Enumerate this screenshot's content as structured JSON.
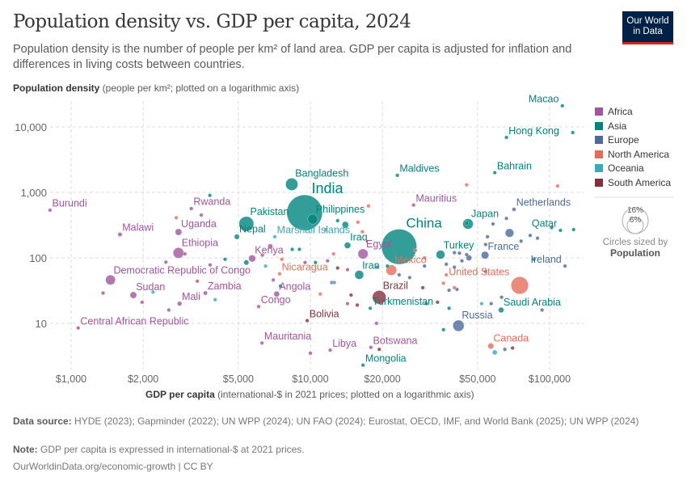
{
  "header": {
    "title": "Population density vs. GDP per capita, 2024",
    "subtitle": "Population density is the number of people per km² of land area. GDP per capita is adjusted for inflation and differences in living costs between countries.",
    "logo": "Our World in Data"
  },
  "footer": {
    "source_label": "Data source:",
    "source": "HYDE (2023); Gapminder (2022); UN WPP (2024); UN FAO (2024); Eurostat, OECD, IMF, and World Bank (2025); UN WPP (2024)",
    "note_label": "Note:",
    "note": "GDP per capita is expressed in international-$ at 2021 prices.",
    "credit": "OurWorldinData.org/economic-growth | CC BY"
  },
  "size_legend": {
    "big": "16%",
    "small": "6%",
    "caption": "Circles sized by",
    "variable": "Population"
  },
  "chart_data": {
    "type": "scatter",
    "title": "Population density vs. GDP per capita, 2024",
    "ylabel_bold": "Population density",
    "ylabel_rest": " (people per km²; plotted on a logarithmic axis)",
    "xlabel_bold": "GDP per capita",
    "xlabel_rest": " (international-$ in 2021 prices; plotted on a logarithmic axis)",
    "xscale": "log",
    "yscale": "log",
    "xlim": [
      720,
      130000
    ],
    "ylim": [
      2,
      26000
    ],
    "grid": true,
    "legend_placement": "right",
    "xticks": [
      {
        "v": 1000,
        "t": "$1,000"
      },
      {
        "v": 2000,
        "t": "$2,000"
      },
      {
        "v": 5000,
        "t": "$5,000"
      },
      {
        "v": 10000,
        "t": "$10,000"
      },
      {
        "v": 20000,
        "t": "$20,000"
      },
      {
        "v": 50000,
        "t": "$50,000"
      },
      {
        "v": 100000,
        "t": "$100,000"
      }
    ],
    "yticks": [
      {
        "v": 10,
        "t": "10"
      },
      {
        "v": 100,
        "t": "100"
      },
      {
        "v": 1000,
        "t": "1,000"
      },
      {
        "v": 10000,
        "t": "10,000"
      }
    ],
    "regions": [
      {
        "name": "Africa",
        "color": "#a2559c"
      },
      {
        "name": "Asia",
        "color": "#00847e"
      },
      {
        "name": "Europe",
        "color": "#4c6a9c"
      },
      {
        "name": "North America",
        "color": "#e56e5a"
      },
      {
        "name": "Oceania",
        "color": "#38aaba"
      },
      {
        "name": "South America",
        "color": "#883039"
      }
    ],
    "points": [
      {
        "label": "Burundi",
        "r": "Africa",
        "x": 816,
        "y": 535,
        "pop": 14
      },
      {
        "label": "Malawi",
        "r": "Africa",
        "x": 1600,
        "y": 228,
        "pop": 21
      },
      {
        "label": "Rwanda",
        "r": "Africa",
        "x": 3180,
        "y": 566,
        "pop": 14
      },
      {
        "label": "Uganda",
        "r": "Africa",
        "x": 2810,
        "y": 248,
        "pop": 50
      },
      {
        "label": "Ethiopia",
        "r": "Africa",
        "x": 2810,
        "y": 119,
        "pop": 130
      },
      {
        "label": "Democratic Republic of Congo",
        "r": "Africa",
        "x": 1460,
        "y": 46,
        "pop": 110
      },
      {
        "label": "Sudan",
        "r": "Africa",
        "x": 1820,
        "y": 27,
        "pop": 50
      },
      {
        "label": "Mali",
        "r": "Africa",
        "x": 2840,
        "y": 20,
        "pop": 24
      },
      {
        "label": "Zambia",
        "r": "Africa",
        "x": 3640,
        "y": 29,
        "pop": 21
      },
      {
        "label": "Central African Republic",
        "r": "Africa",
        "x": 1070,
        "y": 8.5,
        "pop": 5
      },
      {
        "label": "Kenya",
        "r": "Africa",
        "x": 5710,
        "y": 98,
        "pop": 56
      },
      {
        "label": "Nepal",
        "r": "Asia",
        "x": 4930,
        "y": 210,
        "pop": 30
      },
      {
        "label": "Pakistan",
        "r": "Asia",
        "x": 5400,
        "y": 330,
        "pop": 250
      },
      {
        "label": "Bangladesh",
        "r": "Asia",
        "x": 8360,
        "y": 1330,
        "pop": 173
      },
      {
        "label": "India",
        "r": "Asia",
        "x": 9460,
        "y": 490,
        "pop": 1450
      },
      {
        "label": "Philippines",
        "r": "Asia",
        "x": 10230,
        "y": 390,
        "pop": 115
      },
      {
        "label": "Marshall Islands",
        "r": "Oceania",
        "x": 7100,
        "y": 210,
        "pop": 0.04
      },
      {
        "label": "Iraq",
        "r": "Asia",
        "x": 14300,
        "y": 155,
        "pop": 46
      },
      {
        "label": "Egypt",
        "r": "Africa",
        "x": 16600,
        "y": 115,
        "pop": 116
      },
      {
        "label": "Iran",
        "r": "Asia",
        "x": 16000,
        "y": 55,
        "pop": 91
      },
      {
        "label": "China",
        "r": "Asia",
        "x": 23500,
        "y": 148,
        "pop": 1420
      },
      {
        "label": "Mexico",
        "r": "North America",
        "x": 21800,
        "y": 65,
        "pop": 130
      },
      {
        "label": "Brazil",
        "r": "South America",
        "x": 19400,
        "y": 25,
        "pop": 212
      },
      {
        "label": "Turkmenistan",
        "r": "Asia",
        "x": 17800,
        "y": 17,
        "pop": 7
      },
      {
        "label": "Nicaragua",
        "r": "North America",
        "x": 7440,
        "y": 57,
        "pop": 7
      },
      {
        "label": "Angola",
        "r": "Africa",
        "x": 7230,
        "y": 28,
        "pop": 37
      },
      {
        "label": "Congo",
        "r": "Africa",
        "x": 6080,
        "y": 18,
        "pop": 6
      },
      {
        "label": "Bolivia",
        "r": "South America",
        "x": 9700,
        "y": 11,
        "pop": 12
      },
      {
        "label": "Mauritania",
        "r": "Africa",
        "x": 6280,
        "y": 5,
        "pop": 5
      },
      {
        "label": "Libya",
        "r": "Africa",
        "x": 12100,
        "y": 3.9,
        "pop": 7
      },
      {
        "label": "Botswana",
        "r": "Africa",
        "x": 17900,
        "y": 4.3,
        "pop": 2.5
      },
      {
        "label": "Mongolia",
        "r": "Asia",
        "x": 16600,
        "y": 2.3,
        "pop": 3.5
      },
      {
        "label": "Maldives",
        "r": "Asia",
        "x": 23100,
        "y": 1820,
        "pop": 0.5
      },
      {
        "label": "Mauritius",
        "r": "Africa",
        "x": 27000,
        "y": 640,
        "pop": 1.3
      },
      {
        "label": "Turkey",
        "r": "Asia",
        "x": 35000,
        "y": 112,
        "pop": 87
      },
      {
        "label": "Japan",
        "r": "Asia",
        "x": 45600,
        "y": 330,
        "pop": 124
      },
      {
        "label": "France",
        "r": "Europe",
        "x": 53700,
        "y": 110,
        "pop": 66
      },
      {
        "label": "United States",
        "r": "North America",
        "x": 75000,
        "y": 38,
        "pop": 345
      },
      {
        "label": "Russia",
        "r": "Europe",
        "x": 41600,
        "y": 9.2,
        "pop": 145
      },
      {
        "label": "Canada",
        "r": "North America",
        "x": 56800,
        "y": 4.5,
        "pop": 40
      },
      {
        "label": "Saudi Arabia",
        "r": "Asia",
        "x": 62700,
        "y": 16,
        "pop": 34
      },
      {
        "label": "Ireland",
        "r": "Europe",
        "x": 116000,
        "y": 75,
        "pop": 5
      },
      {
        "label": "Qatar",
        "r": "Asia",
        "x": 111000,
        "y": 263,
        "pop": 3
      },
      {
        "label": "Netherlands",
        "r": "Europe",
        "x": 71000,
        "y": 550,
        "pop": 18
      },
      {
        "label": "Bahrain",
        "r": "Asia",
        "x": 59000,
        "y": 2000,
        "pop": 1.6
      },
      {
        "label": "Hong Kong",
        "r": "Asia",
        "x": 66000,
        "y": 6900,
        "pop": 7.5
      },
      {
        "label": "Macao",
        "r": "Asia",
        "x": 113000,
        "y": 21000,
        "pop": 0.7
      },
      {
        "r": "Asia",
        "x": 125000,
        "y": 8200,
        "pop": 6
      },
      {
        "r": "Asia",
        "x": 3800,
        "y": 900,
        "pop": 1
      },
      {
        "r": "North America",
        "x": 2750,
        "y": 410,
        "pop": 11
      },
      {
        "r": "Africa",
        "x": 3500,
        "y": 450,
        "pop": 4
      },
      {
        "r": "Africa",
        "x": 1360,
        "y": 29,
        "pop": 5
      },
      {
        "r": "Africa",
        "x": 1980,
        "y": 21,
        "pop": 8
      },
      {
        "r": "Africa",
        "x": 2560,
        "y": 16,
        "pop": 10
      },
      {
        "r": "Africa",
        "x": 3370,
        "y": 44,
        "pop": 8
      },
      {
        "r": "Africa",
        "x": 2490,
        "y": 86,
        "pop": 6
      },
      {
        "r": "Africa",
        "x": 3810,
        "y": 78,
        "pop": 9
      },
      {
        "r": "Africa",
        "x": 2990,
        "y": 115,
        "pop": 6
      },
      {
        "r": "Oceania",
        "x": 2200,
        "y": 30,
        "pop": 2
      },
      {
        "r": "Oceania",
        "x": 4000,
        "y": 23,
        "pop": 2
      },
      {
        "r": "Asia",
        "x": 4400,
        "y": 95,
        "pop": 6
      },
      {
        "r": "Asia",
        "x": 5400,
        "y": 85,
        "pop": 30
      },
      {
        "r": "Africa",
        "x": 6300,
        "y": 110,
        "pop": 8
      },
      {
        "r": "Africa",
        "x": 6800,
        "y": 150,
        "pop": 28
      },
      {
        "r": "Oceania",
        "x": 6500,
        "y": 75,
        "pop": 1
      },
      {
        "r": "Asia",
        "x": 7500,
        "y": 37,
        "pop": 8
      },
      {
        "r": "Africa",
        "x": 7000,
        "y": 46,
        "pop": 4
      },
      {
        "r": "Africa",
        "x": 9500,
        "y": 85,
        "pop": 10
      },
      {
        "r": "Asia",
        "x": 10500,
        "y": 85,
        "pop": 12
      },
      {
        "r": "North America",
        "x": 7600,
        "y": 95,
        "pop": 2
      },
      {
        "r": "Asia",
        "x": 8400,
        "y": 135,
        "pop": 4
      },
      {
        "r": "Asia",
        "x": 9000,
        "y": 135,
        "pop": 8
      },
      {
        "r": "Asia",
        "x": 13000,
        "y": 370,
        "pop": 4
      },
      {
        "r": "Asia",
        "x": 14000,
        "y": 320,
        "pop": 50
      },
      {
        "r": "North America",
        "x": 11600,
        "y": 270,
        "pop": 1
      },
      {
        "r": "North America",
        "x": 15800,
        "y": 350,
        "pop": 3
      },
      {
        "r": "North America",
        "x": 17500,
        "y": 620,
        "pop": 0.3
      },
      {
        "r": "North America",
        "x": 16500,
        "y": 250,
        "pop": 0.4
      },
      {
        "r": "North America",
        "x": 12500,
        "y": 115,
        "pop": 1
      },
      {
        "r": "Africa",
        "x": 11800,
        "y": 90,
        "pop": 2
      },
      {
        "r": "Africa",
        "x": 12300,
        "y": 42,
        "pop": 9
      },
      {
        "r": "South America",
        "x": 13000,
        "y": 70,
        "pop": 3
      },
      {
        "r": "Africa",
        "x": 14300,
        "y": 66,
        "pop": 4
      },
      {
        "r": "Oceania",
        "x": 12600,
        "y": 42,
        "pop": 1
      },
      {
        "r": "South America",
        "x": 14800,
        "y": 27,
        "pop": 6
      },
      {
        "r": "Africa",
        "x": 14300,
        "y": 20,
        "pop": 10
      },
      {
        "r": "South America",
        "x": 15700,
        "y": 19,
        "pop": 3
      },
      {
        "r": "North America",
        "x": 11000,
        "y": 28,
        "pop": 1
      },
      {
        "r": "Africa",
        "x": 18900,
        "y": 10,
        "pop": 1
      },
      {
        "r": "Africa",
        "x": 10000,
        "y": 3.5,
        "pop": 1
      },
      {
        "r": "South America",
        "x": 19400,
        "y": 4,
        "pop": 1
      },
      {
        "r": "Europe",
        "x": 19000,
        "y": 72,
        "pop": 2
      },
      {
        "r": "Asia",
        "x": 21000,
        "y": 75,
        "pop": 3
      },
      {
        "r": "Europe",
        "x": 23500,
        "y": 55,
        "pop": 3
      },
      {
        "r": "Europe",
        "x": 26000,
        "y": 50,
        "pop": 2
      },
      {
        "r": "South America",
        "x": 29500,
        "y": 35,
        "pop": 3
      },
      {
        "r": "Asia",
        "x": 30500,
        "y": 20,
        "pop": 2
      },
      {
        "r": "North America",
        "x": 27500,
        "y": 130,
        "pop": 1
      },
      {
        "r": "North America",
        "x": 30000,
        "y": 100,
        "pop": 1
      },
      {
        "r": "North America",
        "x": 45000,
        "y": 1300,
        "pop": 0.3
      },
      {
        "r": "North America",
        "x": 108000,
        "y": 1250,
        "pop": 0.1
      },
      {
        "r": "Asia",
        "x": 45000,
        "y": 340,
        "pop": 2
      },
      {
        "r": "Europe",
        "x": 55000,
        "y": 210,
        "pop": 10
      },
      {
        "r": "Europe",
        "x": 54000,
        "y": 160,
        "pop": 10
      },
      {
        "r": "Europe",
        "x": 68000,
        "y": 240,
        "pop": 84
      },
      {
        "r": "Europe",
        "x": 58000,
        "y": 330,
        "pop": 6
      },
      {
        "r": "Europe",
        "x": 66000,
        "y": 400,
        "pop": 1
      },
      {
        "r": "Europe",
        "x": 76000,
        "y": 180,
        "pop": 1
      },
      {
        "r": "Europe",
        "x": 83000,
        "y": 220,
        "pop": 1
      },
      {
        "r": "Europe",
        "x": 89000,
        "y": 200,
        "pop": 1
      },
      {
        "r": "Asia",
        "x": 102000,
        "y": 290,
        "pop": 1
      },
      {
        "r": "Asia",
        "x": 126000,
        "y": 270,
        "pop": 1
      },
      {
        "r": "Asia",
        "x": 86000,
        "y": 95,
        "pop": 3
      },
      {
        "r": "Europe",
        "x": 40000,
        "y": 120,
        "pop": 4
      },
      {
        "r": "Europe",
        "x": 42000,
        "y": 118,
        "pop": 3
      },
      {
        "r": "Europe",
        "x": 45000,
        "y": 112,
        "pop": 2
      },
      {
        "r": "Europe",
        "x": 46000,
        "y": 100,
        "pop": 38
      },
      {
        "r": "Europe",
        "x": 37000,
        "y": 80,
        "pop": 3
      },
      {
        "r": "Europe",
        "x": 40000,
        "y": 72,
        "pop": 2
      },
      {
        "r": "Europe",
        "x": 43000,
        "y": 90,
        "pop": 2
      },
      {
        "r": "Europe",
        "x": 54000,
        "y": 62,
        "pop": 2
      },
      {
        "r": "Europe",
        "x": 38000,
        "y": 32,
        "pop": 3
      },
      {
        "r": "Europe",
        "x": 41000,
        "y": 33,
        "pop": 3
      },
      {
        "r": "Europe",
        "x": 30000,
        "y": 75,
        "pop": 4
      },
      {
        "r": "North America",
        "x": 37000,
        "y": 55,
        "pop": 1
      },
      {
        "r": "North America",
        "x": 36000,
        "y": 41,
        "pop": 1
      },
      {
        "r": "North America",
        "x": 40000,
        "y": 35,
        "pop": 1
      },
      {
        "r": "South America",
        "x": 34000,
        "y": 21,
        "pop": 3
      },
      {
        "r": "Asia",
        "x": 38000,
        "y": 17,
        "pop": 5
      },
      {
        "r": "Oceania",
        "x": 52000,
        "y": 20,
        "pop": 1
      },
      {
        "r": "Europe",
        "x": 57000,
        "y": 20,
        "pop": 2
      },
      {
        "r": "Europe",
        "x": 93000,
        "y": 16,
        "pop": 2
      },
      {
        "r": "Europe",
        "x": 63000,
        "y": 25,
        "pop": 5
      },
      {
        "r": "Asia",
        "x": 36000,
        "y": 8,
        "pop": 5
      },
      {
        "r": "Oceania",
        "x": 59000,
        "y": 3.6,
        "pop": 27
      },
      {
        "r": "Europe",
        "x": 65000,
        "y": 4,
        "pop": 5
      },
      {
        "r": "South America",
        "x": 70000,
        "y": 4.2,
        "pop": 0.5
      }
    ]
  }
}
